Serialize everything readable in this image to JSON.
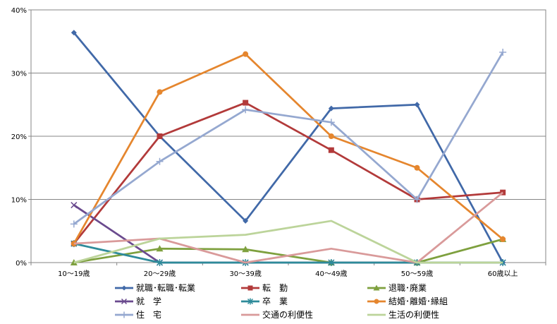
{
  "chart_data": {
    "type": "line",
    "categories": [
      "10～19歳",
      "20～29歳",
      "30～39歳",
      "40～49歳",
      "50～59歳",
      "60歳以上"
    ],
    "ylim": [
      0,
      40
    ],
    "yticks": [
      "0%",
      "10%",
      "20%",
      "30%",
      "40%"
    ],
    "grid": true,
    "legend_position": "bottom",
    "series": [
      {
        "name": "就職･転職･転業",
        "color": "#4169A8",
        "marker": "diamond",
        "values": [
          36.4,
          20.0,
          6.6,
          24.4,
          25.0,
          0.0
        ]
      },
      {
        "name": "転　勤",
        "color": "#B23A3A",
        "marker": "square",
        "values": [
          3.0,
          20.0,
          25.3,
          17.8,
          10.0,
          11.1
        ]
      },
      {
        "name": "退職･廃業",
        "color": "#7EA03E",
        "marker": "triangle",
        "values": [
          0.0,
          2.2,
          2.1,
          0.0,
          0.0,
          3.7
        ]
      },
      {
        "name": "就　学",
        "color": "#6A4A8E",
        "marker": "x",
        "values": [
          9.1,
          0.0,
          0.0,
          0.0,
          0.0,
          0.0
        ]
      },
      {
        "name": "卒　業",
        "color": "#2E8B9A",
        "marker": "asterisk",
        "values": [
          3.0,
          0.0,
          0.0,
          0.0,
          0.0,
          0.0
        ]
      },
      {
        "name": "結婚･離婚･縁組",
        "color": "#E5862E",
        "marker": "circle",
        "values": [
          3.0,
          27.0,
          33.0,
          20.0,
          15.0,
          3.7
        ]
      },
      {
        "name": "住　宅",
        "color": "#95A8D0",
        "marker": "plus",
        "values": [
          6.1,
          16.0,
          24.2,
          22.2,
          10.0,
          33.3
        ]
      },
      {
        "name": "交通の利便性",
        "color": "#D99A9A",
        "marker": "none",
        "values": [
          3.0,
          3.8,
          0.0,
          2.2,
          0.0,
          11.1
        ]
      },
      {
        "name": "生活の利便性",
        "color": "#BCD49A",
        "marker": "none",
        "values": [
          0.0,
          3.8,
          4.4,
          6.6,
          0.0,
          0.0
        ]
      }
    ]
  }
}
